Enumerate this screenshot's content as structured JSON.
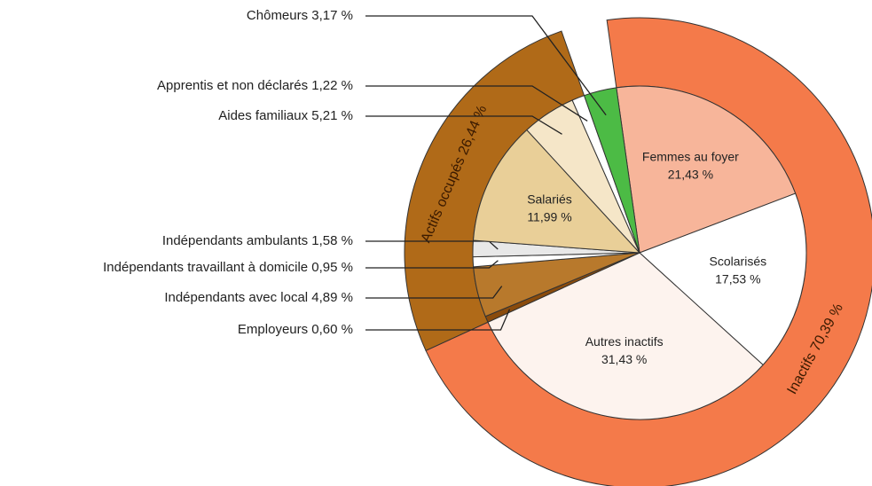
{
  "chart_data": {
    "type": "pie",
    "inner": {
      "categories": [
        "Femmes au foyer",
        "Scolarisés",
        "Autres inactifs",
        "Employeurs",
        "Indépendants avec local",
        "Indépendants travaillant à domicile",
        "Indépendants ambulants",
        "Salariés",
        "Aides familiaux",
        "Apprentis et non déclarés",
        "Chômeurs"
      ],
      "values": [
        21.43,
        17.53,
        31.43,
        0.6,
        4.89,
        0.95,
        1.58,
        11.99,
        5.21,
        1.22,
        3.17
      ],
      "value_labels": [
        "21,43 %",
        "17,53 %",
        "31,43 %",
        "0,60 %",
        "4,89 %",
        "0,95 %",
        "1,58 %",
        "11,99 %",
        "5,21 %",
        "1,22 %",
        "3,17 %"
      ],
      "colors": [
        "#f7b59a",
        "#ffffff",
        "#fdf3ee",
        "#8a4b0c",
        "#b8792c",
        "#ffffff",
        "#e8e8e8",
        "#e9cf98",
        "#f5e6c8",
        "#ffffff",
        "#4cbb45"
      ]
    },
    "outer": {
      "categories": [
        "Inactifs",
        "Actifs occupés"
      ],
      "values": [
        70.39,
        26.44
      ],
      "value_labels": [
        "70,39 %",
        "26,44 %"
      ],
      "colors": [
        "#f47a4a",
        "#b06a18"
      ]
    }
  }
}
